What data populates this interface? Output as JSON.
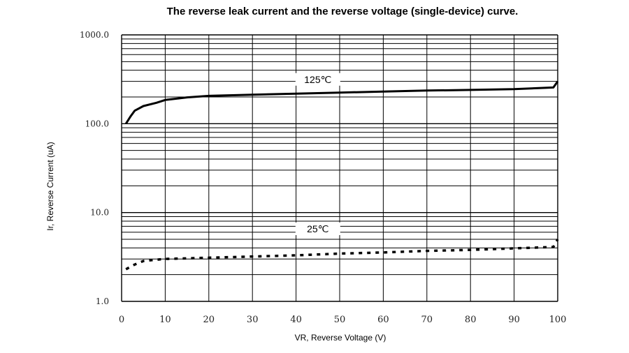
{
  "chart_data": {
    "type": "line",
    "title": "The reverse leak current and the reverse voltage (single-device) curve.",
    "xlabel": "VR, Reverse Voltage (V)",
    "ylabel": "Ir, Reverse Current (uA)",
    "xlim": [
      0,
      100
    ],
    "ylim": [
      1,
      1000
    ],
    "yscale": "log",
    "grid": true,
    "x_ticks": [
      "0",
      "10",
      "20",
      "30",
      "40",
      "50",
      "60",
      "70",
      "80",
      "90",
      "100"
    ],
    "y_ticks": [
      "1.0",
      "10.0",
      "100.0",
      "1000.0"
    ],
    "series": [
      {
        "name": "125℃",
        "style": "solid",
        "x": [
          1,
          2,
          3,
          5,
          8,
          10,
          15,
          20,
          30,
          40,
          50,
          60,
          70,
          80,
          90,
          99,
          100
        ],
        "y": [
          100,
          120,
          140,
          158,
          172,
          185,
          198,
          206,
          212,
          218,
          224,
          230,
          236,
          240,
          245,
          256,
          300
        ]
      },
      {
        "name": "25℃",
        "style": "dotted",
        "x": [
          1,
          3,
          5,
          8,
          10,
          20,
          30,
          40,
          50,
          60,
          70,
          80,
          90,
          99,
          100
        ],
        "y": [
          2.3,
          2.6,
          2.85,
          2.95,
          3.0,
          3.1,
          3.2,
          3.3,
          3.45,
          3.55,
          3.7,
          3.8,
          3.95,
          4.1,
          5.0
        ]
      }
    ]
  }
}
